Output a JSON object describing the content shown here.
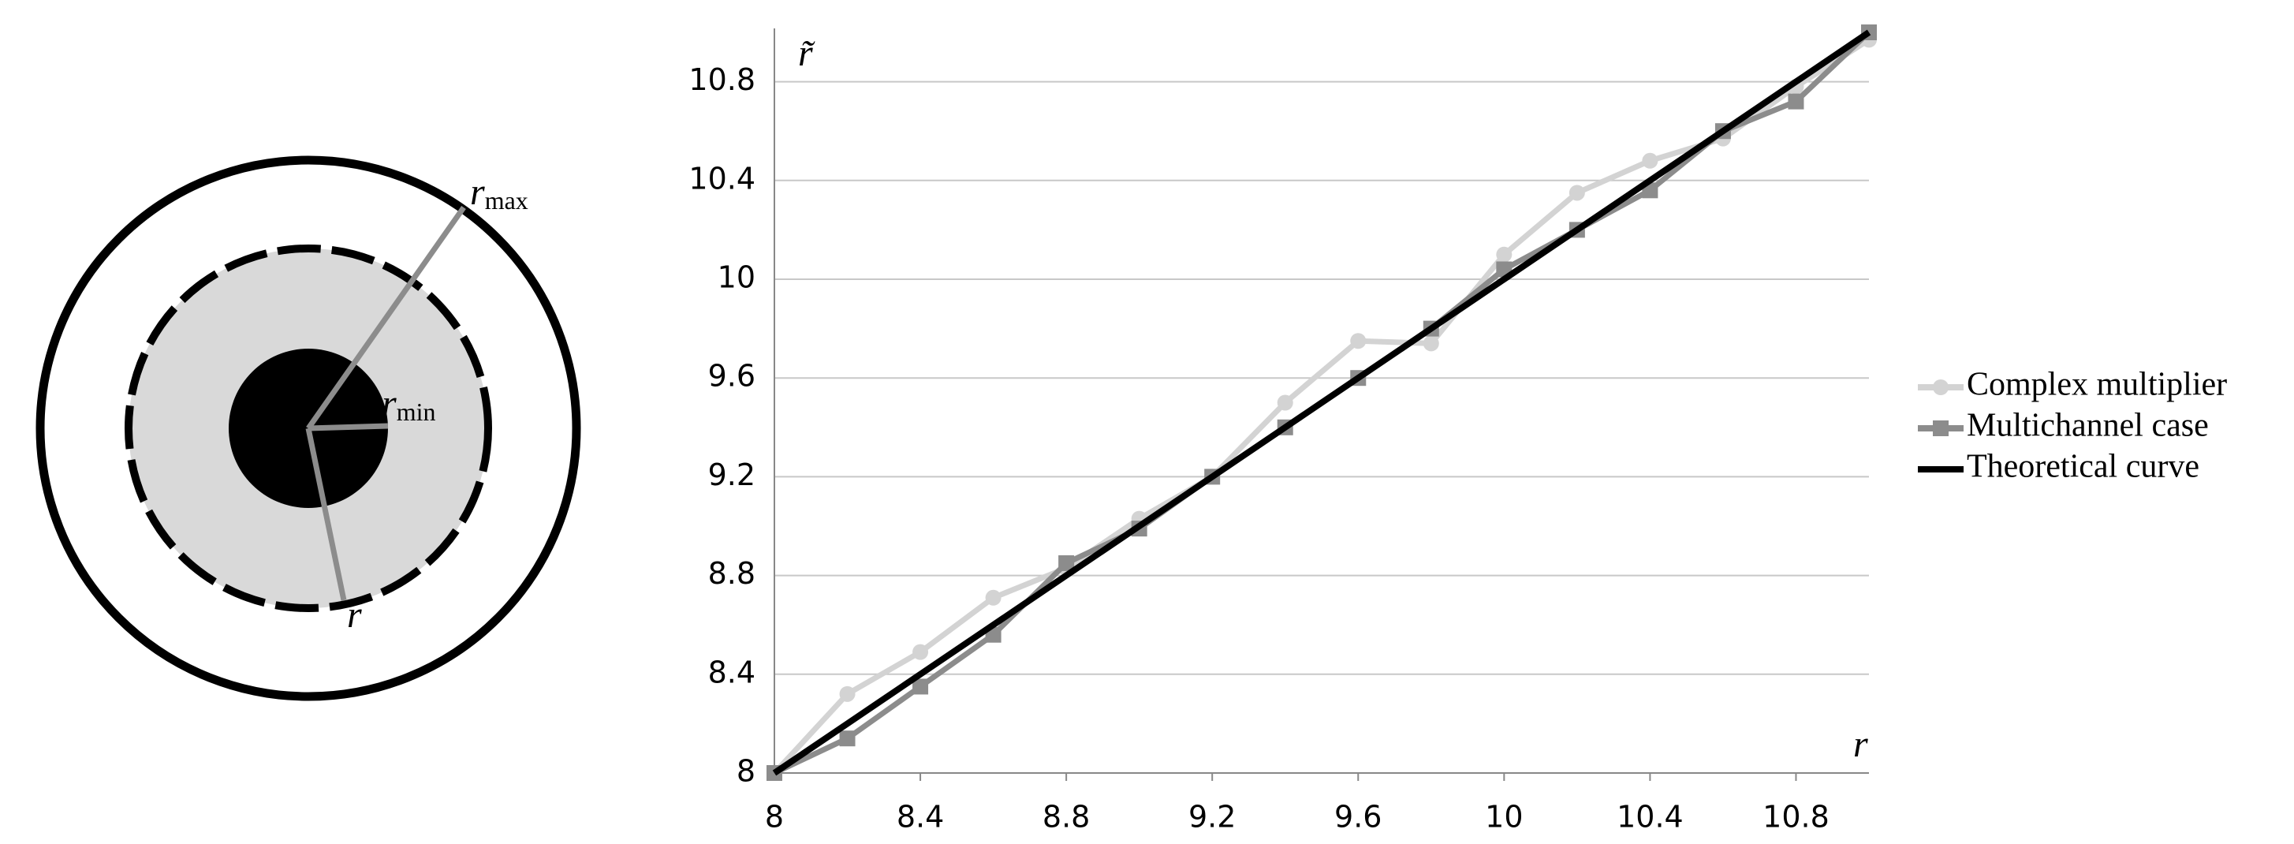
{
  "diagram": {
    "outer_label": {
      "base": "r",
      "sub": "max"
    },
    "inner_label": {
      "base": "r",
      "sub": "min"
    },
    "middle_label": "r"
  },
  "chart_data": {
    "type": "line",
    "x": [
      8,
      8.2,
      8.4,
      8.6,
      8.8,
      9,
      9.2,
      9.4,
      9.6,
      9.8,
      10,
      10.2,
      10.4,
      10.6,
      10.8,
      11
    ],
    "series": [
      {
        "name": "Complex multiplier",
        "color": "#d3d3d3",
        "marker": "circle",
        "values": [
          8,
          8.32,
          8.49,
          8.71,
          8.83,
          9.03,
          9.2,
          9.5,
          9.75,
          9.74,
          10.1,
          10.35,
          10.48,
          10.57,
          10.78,
          10.97
        ]
      },
      {
        "name": "Multichannel case",
        "color": "#8c8c8c",
        "marker": "square",
        "values": [
          8,
          8.14,
          8.35,
          8.56,
          8.85,
          8.99,
          9.2,
          9.4,
          9.6,
          9.8,
          10.04,
          10.2,
          10.36,
          10.6,
          10.72,
          11
        ]
      },
      {
        "name": "Theoretical curve",
        "color": "#000000",
        "marker": "none",
        "values": [
          8,
          8.2,
          8.4,
          8.6,
          8.8,
          9,
          9.2,
          9.4,
          9.6,
          9.8,
          10,
          10.2,
          10.4,
          10.6,
          10.8,
          11
        ]
      }
    ],
    "x_label": "r",
    "y_label": "r̃",
    "xlim": [
      8,
      11
    ],
    "ylim": [
      8,
      11
    ],
    "xticks": [
      8,
      8.4,
      8.8,
      9.2,
      9.6,
      10,
      10.4,
      10.8
    ],
    "yticks": [
      8,
      8.4,
      8.8,
      9.2,
      9.6,
      10,
      10.4,
      10.8
    ],
    "grid": true,
    "legend": "right"
  }
}
